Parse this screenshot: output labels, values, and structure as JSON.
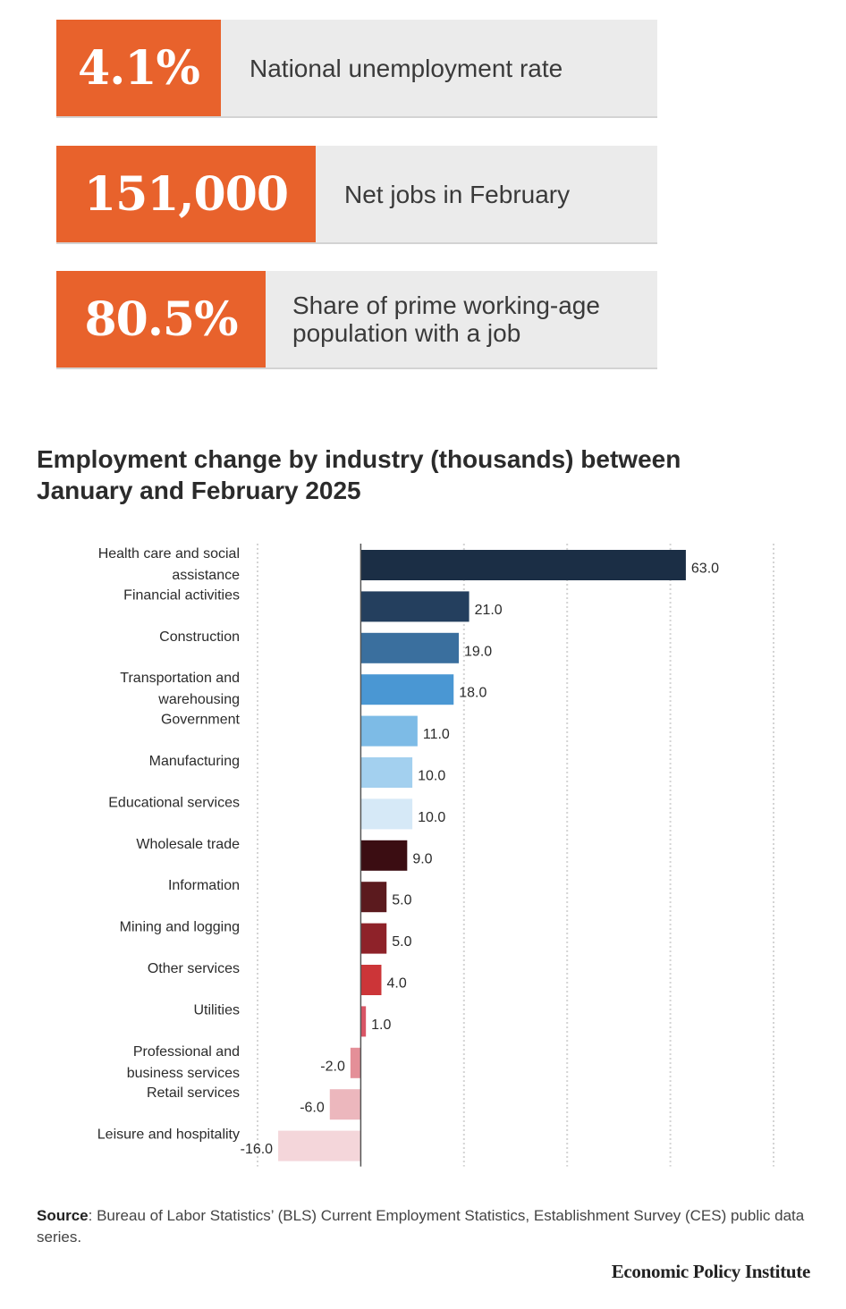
{
  "stats": [
    {
      "value": "4.1%",
      "label": "National unemployment rate"
    },
    {
      "value": "151,000",
      "label": "Net jobs in February"
    },
    {
      "value": "80.5%",
      "label": "Share of prime working-age population with a job"
    }
  ],
  "colors": {
    "accent": "#e8622c",
    "stat_background": "#ebebeb"
  },
  "chart_data": {
    "type": "bar",
    "orientation": "horizontal",
    "title": "Employment change by industry (thousands) between January and February 2025",
    "xlabel": "",
    "ylabel": "",
    "xlim": [
      -20,
      80
    ],
    "grid": true,
    "categories": [
      "Health care and social assistance",
      "Financial activities",
      "Construction",
      "Transportation and warehousing",
      "Government",
      "Manufacturing",
      "Educational services",
      "Wholesale trade",
      "Information",
      "Mining and logging",
      "Other services",
      "Utilities",
      "Professional and business services",
      "Retail services",
      "Leisure and hospitality"
    ],
    "values": [
      63.0,
      21.0,
      19.0,
      18.0,
      11.0,
      10.0,
      10.0,
      9.0,
      5.0,
      5.0,
      4.0,
      1.0,
      -2.0,
      -6.0,
      -16.0
    ],
    "value_labels": [
      "63.0",
      "21.0",
      "19.0",
      "18.0",
      "11.0",
      "10.0",
      "10.0",
      "9.0",
      "5.0",
      "5.0",
      "4.0",
      "1.0",
      "-2.0",
      "-6.0",
      "-16.0"
    ],
    "bar_colors": [
      "#1b2e45",
      "#243f5e",
      "#3a6f9e",
      "#4a97d3",
      "#7dbbe6",
      "#a3d0ef",
      "#d6e9f7",
      "#3b0d12",
      "#5b1a1e",
      "#8e2229",
      "#cc3538",
      "#d95565",
      "#e48f98",
      "#ecb7bd",
      "#f4d6da"
    ]
  },
  "source": {
    "label": "Source",
    "text": ": Bureau of Labor Statistics’ (BLS) Current Employment Statistics, Establishment Survey (CES) public data series."
  },
  "brand": "Economic Policy Institute"
}
